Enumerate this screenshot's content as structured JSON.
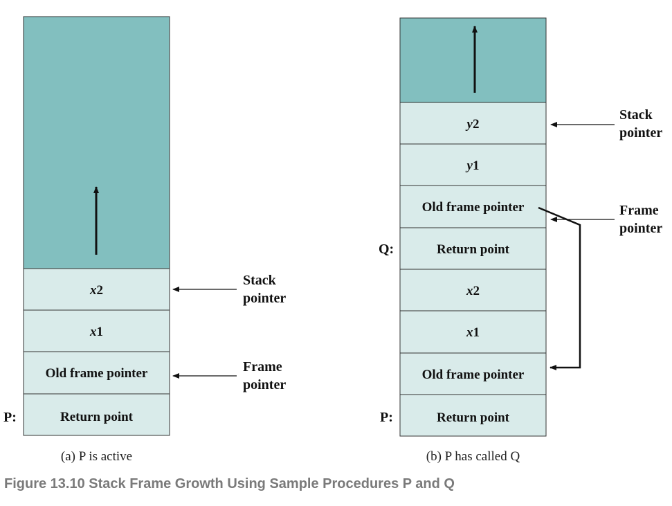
{
  "colors": {
    "free_region": "#82bfbf",
    "cell": "#d9ebea",
    "border": "#333333",
    "caption_gray": "#7a7a7a"
  },
  "panel_a": {
    "cells": [
      {
        "label": "x",
        "suffix": "2",
        "italic": true
      },
      {
        "label": "x",
        "suffix": "1",
        "italic": true
      },
      {
        "label": "Old frame pointer",
        "suffix": "",
        "italic": false
      },
      {
        "label": "Return point",
        "suffix": "",
        "italic": false
      }
    ],
    "proc_label": "P:",
    "stack_pointer": {
      "line1": "Stack",
      "line2": "pointer"
    },
    "frame_pointer": {
      "line1": "Frame",
      "line2": "pointer"
    },
    "caption": "(a) P is active"
  },
  "panel_b": {
    "cells": [
      {
        "label": "y",
        "suffix": "2",
        "italic": true
      },
      {
        "label": "y",
        "suffix": "1",
        "italic": true
      },
      {
        "label": "Old frame pointer",
        "suffix": "",
        "italic": false
      },
      {
        "label": "Return point",
        "suffix": "",
        "italic": false
      },
      {
        "label": "x",
        "suffix": "2",
        "italic": true
      },
      {
        "label": "x",
        "suffix": "1",
        "italic": true
      },
      {
        "label": "Old frame pointer",
        "suffix": "",
        "italic": false
      },
      {
        "label": "Return point",
        "suffix": "",
        "italic": false
      }
    ],
    "proc_label_q": "Q:",
    "proc_label_p": "P:",
    "stack_pointer": {
      "line1": "Stack",
      "line2": "pointer"
    },
    "frame_pointer": {
      "line1": "Frame",
      "line2": "pointer"
    },
    "caption": "(b) P has called Q"
  },
  "figure_caption": "Figure 13.10 Stack Frame Growth Using Sample Procedures P and Q"
}
